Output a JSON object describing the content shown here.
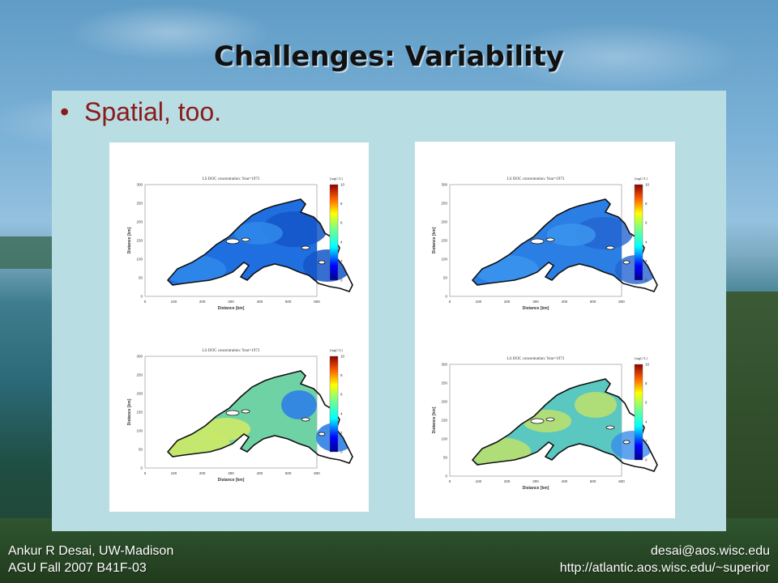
{
  "slide": {
    "title": "Challenges: Variability",
    "bullet": "Spatial, too.",
    "bullet_marker": "•"
  },
  "figures": [
    {
      "plot_title": "LS DOC concentration: Year=1973",
      "unit": "[mgC/L]",
      "xlabel": "Distance [km]",
      "ylabel": "Distance [km]"
    },
    {
      "plot_title": "LS DOC concentration: Year=1973",
      "unit": "[mgC/L]",
      "xlabel": "Distance [km]",
      "ylabel": "Distance [km]"
    },
    {
      "plot_title": "LS DOC concentration: Year=1973",
      "unit": "[mgC/L]",
      "xlabel": "Distance [km]",
      "ylabel": "Distance [km]"
    },
    {
      "plot_title": "LS DOC concentration: Year=1973",
      "unit": "[mgC/L]",
      "xlabel": "Distance [km]",
      "ylabel": "Distance [km]"
    }
  ],
  "axis": {
    "x_ticks": [
      "0",
      "100",
      "200",
      "300",
      "400",
      "500",
      "600"
    ],
    "y_ticks": [
      "300",
      "250",
      "200",
      "150",
      "100",
      "50",
      "0"
    ],
    "colorbar_ticks": [
      "10",
      "8",
      "6",
      "4",
      "2",
      "0"
    ]
  },
  "footer": {
    "author": "Ankur R Desai, UW-Madison",
    "event": "AGU Fall 2007 B41F-03",
    "email": "desai@aos.wisc.edu",
    "url": "http://atlantic.aos.wisc.edu/~superior"
  },
  "colors": {
    "title": "#111111",
    "bullet": "#8b1a1a",
    "panel": "#b8dde2",
    "lake_blue": "#2a78e0",
    "lake_cyan_green": "#7dd6a8"
  }
}
